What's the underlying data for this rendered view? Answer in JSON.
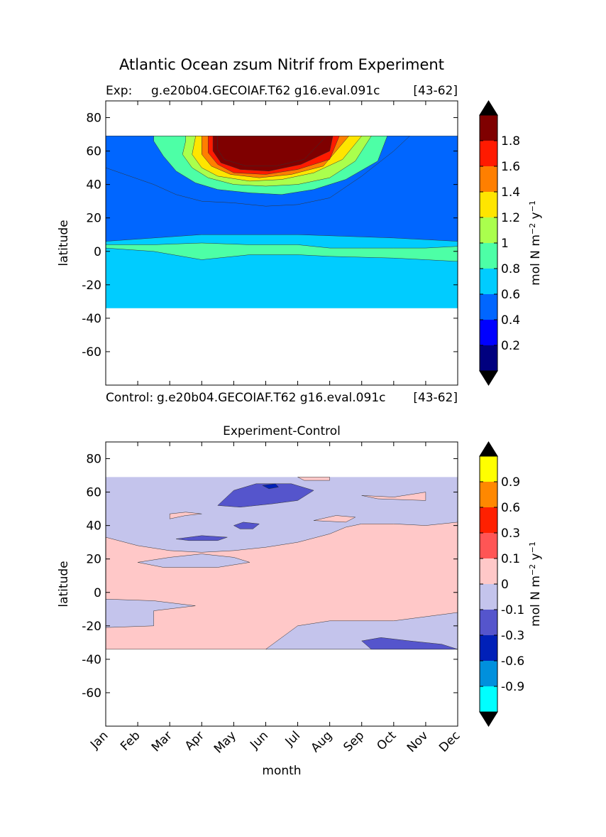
{
  "figure": {
    "title": "Atlantic Ocean zsum Nitrif from Experiment"
  },
  "chart_data": [
    {
      "type": "heatmap",
      "subtitle_left": "Exp:",
      "subtitle_mid": "g.e20b04.GECOIAF.T62 g16.eval.091c",
      "subtitle_right": "[43-62]",
      "xlabel": "",
      "ylabel": "latitude",
      "xlim": [
        0,
        11
      ],
      "ylim": [
        -80,
        90
      ],
      "y_ticks": [
        80,
        60,
        40,
        20,
        0,
        -20,
        -40,
        -60
      ],
      "colorbar": {
        "label_parts": [
          "mol N m",
          "−2",
          " y",
          "−1"
        ],
        "levels": [
          0,
          0.2,
          0.4,
          0.6,
          0.8,
          1.0,
          1.2,
          1.4,
          1.6,
          1.8,
          2.0
        ],
        "tick_labels": [
          "0.2",
          "0.4",
          "0.6",
          "0.8",
          "1",
          "1.2",
          "1.4",
          "1.6",
          "1.8"
        ],
        "colors": [
          "#00007f",
          "#0000ff",
          "#0066ff",
          "#00ccff",
          "#4dffa6",
          "#aaff4d",
          "#ffe500",
          "#ff7f00",
          "#ff1a00",
          "#7f0000"
        ],
        "extend_colors": [
          "#000000",
          "#000000"
        ]
      },
      "contours": [
        {
          "level": 0.6,
          "points": [
            [
              0,
              8
            ],
            [
              1.5,
              6
            ],
            [
              3,
              1
            ],
            [
              4.5,
              4
            ],
            [
              6,
              4
            ],
            [
              7,
              3
            ],
            [
              8,
              2.5
            ],
            [
              9,
              2
            ],
            [
              10,
              1
            ],
            [
              11,
              0
            ]
          ]
        },
        {
          "level": 0.8,
          "points": [
            [
              0,
              4
            ],
            [
              1.5,
              4
            ],
            [
              3,
              5
            ],
            [
              4.5,
              4
            ],
            [
              6,
              4
            ],
            [
              7,
              2
            ],
            [
              8,
              2
            ],
            [
              9,
              2
            ],
            [
              10,
              2
            ],
            [
              11,
              3
            ]
          ]
        },
        {
          "level": 0.4,
          "points": [
            [
              0,
              50
            ],
            [
              1.5,
              40
            ],
            [
              2.2,
              34
            ],
            [
              3,
              30
            ],
            [
              4,
              29
            ],
            [
              5,
              27
            ],
            [
              6,
              28
            ],
            [
              7,
              32
            ],
            [
              8,
              45
            ],
            [
              9,
              60
            ],
            [
              9.5,
              69
            ]
          ]
        },
        {
          "level": 0.8,
          "points": [
            [
              1.5,
              66
            ],
            [
              1.8,
              57
            ],
            [
              2.2,
              48
            ],
            [
              2.8,
              41
            ],
            [
              3.5,
              37
            ],
            [
              4.5,
              35
            ],
            [
              5.5,
              34
            ],
            [
              6.5,
              37
            ],
            [
              7.5,
              43
            ],
            [
              8.5,
              54
            ],
            [
              8.8,
              69
            ]
          ]
        },
        {
          "level": 1.0,
          "points": [
            [
              2.5,
              66
            ],
            [
              2.4,
              58
            ],
            [
              2.7,
              50
            ],
            [
              3.2,
              44
            ],
            [
              4,
              40
            ],
            [
              5,
              39
            ],
            [
              6,
              40
            ],
            [
              7,
              44
            ],
            [
              7.8,
              54
            ],
            [
              8.3,
              69
            ]
          ]
        },
        {
          "level": 1.2,
          "points": [
            [
              2.8,
              68
            ],
            [
              2.7,
              58
            ],
            [
              3.0,
              50
            ],
            [
              3.5,
              45
            ],
            [
              4.5,
              42
            ],
            [
              5.5,
              43
            ],
            [
              6.5,
              47
            ],
            [
              7.4,
              55
            ],
            [
              8.0,
              69
            ]
          ]
        },
        {
          "level": 1.4,
          "points": [
            [
              3.0,
              69
            ],
            [
              3.0,
              58
            ],
            [
              3.3,
              51
            ],
            [
              3.9,
              46
            ],
            [
              4.8,
              44
            ],
            [
              5.8,
              46
            ],
            [
              6.8,
              51
            ],
            [
              7.6,
              69
            ]
          ]
        },
        {
          "level": 1.6,
          "points": [
            [
              3.2,
              69
            ],
            [
              3.2,
              59
            ],
            [
              3.5,
              52
            ],
            [
              4.0,
              47
            ],
            [
              5.0,
              46
            ],
            [
              6.0,
              49
            ],
            [
              7.0,
              55
            ],
            [
              7.3,
              69
            ]
          ]
        },
        {
          "level": 1.8,
          "points": [
            [
              3.35,
              69
            ],
            [
              3.35,
              60
            ],
            [
              3.6,
              53
            ],
            [
              4.2,
              49
            ],
            [
              5.1,
              48
            ],
            [
              6.1,
              52
            ],
            [
              7.0,
              60
            ],
            [
              7.1,
              69
            ]
          ]
        },
        {
          "level": 2.0,
          "points": [
            [
              3.5,
              69
            ],
            [
              3.5,
              61
            ],
            [
              3.7,
              55
            ],
            [
              4.4,
              51
            ],
            [
              5.3,
              51
            ],
            [
              6.2,
              55
            ],
            [
              6.9,
              69
            ]
          ]
        }
      ],
      "data_domain": {
        "lat_min": -34,
        "lat_max": 69
      }
    },
    {
      "type": "heatmap",
      "subtitle_left": "Control:",
      "subtitle_mid": "g.e20b04.GECOIAF.T62 g16.eval.091c",
      "subtitle_right": "[43-62]",
      "title": "Experiment-Control",
      "xlabel": "month",
      "ylabel": "latitude",
      "xlim": [
        0,
        11
      ],
      "ylim": [
        -80,
        90
      ],
      "y_ticks": [
        80,
        60,
        40,
        20,
        0,
        -20,
        -40,
        -60
      ],
      "x_ticks": [
        "Jan",
        "Feb",
        "Mar",
        "Apr",
        "May",
        "Jun",
        "Jul",
        "Aug",
        "Sep",
        "Oct",
        "Nov",
        "Dec"
      ],
      "colorbar": {
        "label_parts": [
          "mol N m",
          "−2",
          " y",
          "−1"
        ],
        "levels": [
          -1.2,
          -0.9,
          -0.6,
          -0.3,
          -0.1,
          0,
          0.1,
          0.3,
          0.6,
          0.9,
          1.2
        ],
        "tick_labels": [
          "-0.9",
          "-0.6",
          "-0.3",
          "-0.1",
          "0",
          "0.1",
          "0.3",
          "0.6",
          "0.9"
        ],
        "colors": [
          "#00ffff",
          "#0090dd",
          "#0020b8",
          "#5555cc",
          "#c4c4ec",
          "#ffc8c8",
          "#ff5555",
          "#ff2000",
          "#ff8800",
          "#ffff00"
        ],
        "extend_colors": [
          "#000000",
          "#000000"
        ]
      },
      "background_level": -0.05,
      "regions": [
        {
          "value": 0.05,
          "points": [
            [
              0,
              33
            ],
            [
              1,
              28
            ],
            [
              2,
              25
            ],
            [
              3,
              24
            ],
            [
              4,
              25
            ],
            [
              5,
              27
            ],
            [
              6,
              30
            ],
            [
              7,
              35
            ],
            [
              7.5,
              39
            ],
            [
              8,
              41
            ],
            [
              9,
              41
            ],
            [
              10,
              40
            ],
            [
              11,
              42
            ],
            [
              11,
              -34
            ],
            [
              0,
              -34
            ]
          ]
        },
        {
          "value": -0.05,
          "points": [
            [
              0,
              -4
            ],
            [
              1.5,
              -5
            ],
            [
              2.8,
              -8
            ],
            [
              1.5,
              -11
            ],
            [
              1.5,
              -15
            ],
            [
              1.5,
              -20
            ],
            [
              0,
              -21
            ]
          ]
        },
        {
          "value": -0.05,
          "points": [
            [
              5,
              -34
            ],
            [
              6,
              -20
            ],
            [
              7,
              -17
            ],
            [
              9,
              -17
            ],
            [
              11,
              -12
            ],
            [
              11,
              -34
            ]
          ]
        },
        {
          "value": -0.05,
          "points": [
            [
              1,
              18
            ],
            [
              2,
              21
            ],
            [
              3,
              23
            ],
            [
              4,
              21
            ],
            [
              4.5,
              18
            ],
            [
              3.5,
              15
            ],
            [
              1.8,
              15
            ]
          ]
        },
        {
          "value": 0.05,
          "points": [
            [
              8,
              58
            ],
            [
              9,
              57
            ],
            [
              10,
              60
            ],
            [
              10,
              55
            ],
            [
              8.5,
              56
            ]
          ]
        },
        {
          "value": 0.05,
          "points": [
            [
              6,
              69
            ],
            [
              7,
              69
            ],
            [
              7,
              67
            ],
            [
              6.2,
              67
            ]
          ]
        },
        {
          "value": 0.05,
          "points": [
            [
              2,
              44
            ],
            [
              2.5,
              46
            ],
            [
              3,
              47
            ],
            [
              2.5,
              48
            ],
            [
              2,
              47
            ]
          ]
        },
        {
          "value": 0.05,
          "points": [
            [
              6.5,
              43
            ],
            [
              7.5,
              42
            ],
            [
              7.8,
              45
            ],
            [
              7.2,
              46
            ]
          ]
        },
        {
          "value": -0.2,
          "points": [
            [
              3.5,
              52
            ],
            [
              4,
              61
            ],
            [
              4.7,
              65
            ],
            [
              5.8,
              65
            ],
            [
              6.5,
              61
            ],
            [
              6,
              55
            ],
            [
              5.2,
              53
            ],
            [
              4.2,
              51
            ]
          ]
        },
        {
          "value": -0.2,
          "points": [
            [
              4,
              40
            ],
            [
              4.3,
              42
            ],
            [
              4.8,
              41
            ],
            [
              4.6,
              38
            ],
            [
              4.2,
              38
            ]
          ]
        },
        {
          "value": -0.2,
          "points": [
            [
              2.2,
              32
            ],
            [
              3,
              34
            ],
            [
              3.8,
              33
            ],
            [
              3.5,
              31
            ],
            [
              2.6,
              31
            ]
          ]
        },
        {
          "value": -0.2,
          "points": [
            [
              8,
              -29
            ],
            [
              8.6,
              -27
            ],
            [
              9.5,
              -29
            ],
            [
              10.5,
              -31
            ],
            [
              11,
              -34
            ],
            [
              8.3,
              -34
            ]
          ]
        },
        {
          "value": -0.4,
          "points": [
            [
              4.9,
              64
            ],
            [
              5.3,
              65
            ],
            [
              5.4,
              63
            ],
            [
              5.1,
              62
            ]
          ]
        }
      ],
      "data_domain": {
        "lat_min": -34,
        "lat_max": 69
      }
    }
  ]
}
